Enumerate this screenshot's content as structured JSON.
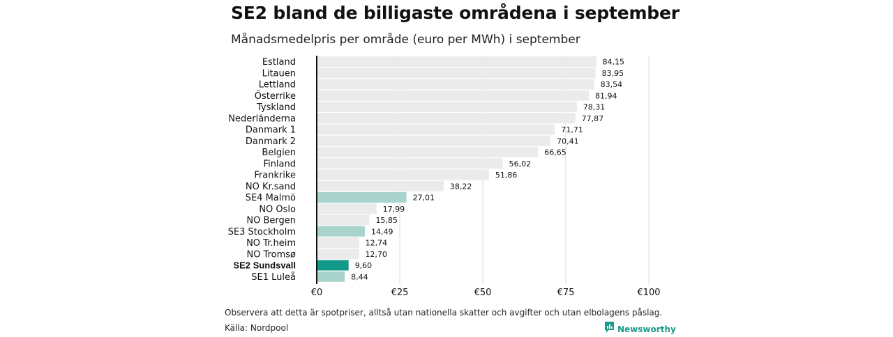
{
  "title": "SE2 bland de billigaste områdena i september",
  "subtitle": "Månadsmedelpris per område (euro per MWh) i september",
  "note": "Observera att detta är spotpriser, alltså utan nationella skatter och avgifter och utan elbolagens påslag.",
  "source": "Källa: Nordpool",
  "brand": {
    "name": "Newsworthy",
    "icon": "newsworthy-logo-icon"
  },
  "colors": {
    "default_bar": "#ebebeb",
    "se_bar": "#a8d4cc",
    "highlight_bar": "#13998a",
    "axis": "#111111",
    "grid": "#d9d9d9"
  },
  "chart_data": {
    "type": "bar",
    "orientation": "horizontal",
    "categories": [
      "Estland",
      "Litauen",
      "Lettland",
      "Österrike",
      "Tyskland",
      "Nederländerna",
      "Danmark 1",
      "Danmark 2",
      "Belgien",
      "Finland",
      "Frankrike",
      "NO Kr.sand",
      "SE4 Malmö",
      "NO Oslo",
      "NO Bergen",
      "SE3 Stockholm",
      "NO Tr.heim",
      "NO Tromsø",
      "SE2 Sundsvall",
      "SE1 Luleå"
    ],
    "values": [
      84.15,
      83.95,
      83.54,
      81.94,
      78.31,
      77.87,
      71.71,
      70.41,
      66.65,
      56.02,
      51.86,
      38.22,
      27.01,
      17.99,
      15.85,
      14.49,
      12.74,
      12.7,
      9.6,
      8.44
    ],
    "value_labels": [
      "84,15",
      "83,95",
      "83,54",
      "81,94",
      "78,31",
      "77,87",
      "71,71",
      "70,41",
      "66,65",
      "56,02",
      "51,86",
      "38,22",
      "27,01",
      "17,99",
      "15,85",
      "14,49",
      "12,74",
      "12,70",
      "9,60",
      "8,44"
    ],
    "bar_style": [
      "default",
      "default",
      "default",
      "default",
      "default",
      "default",
      "default",
      "default",
      "default",
      "default",
      "default",
      "default",
      "se",
      "default",
      "default",
      "se",
      "default",
      "default",
      "highlight",
      "se"
    ],
    "xlim": [
      0,
      100
    ],
    "xticks": [
      0,
      25,
      50,
      75,
      100
    ],
    "xtick_labels": [
      "€0",
      "€25",
      "€50",
      "€75",
      "€100"
    ],
    "xlabel": "",
    "ylabel": "",
    "grid": true,
    "legend": "none"
  }
}
